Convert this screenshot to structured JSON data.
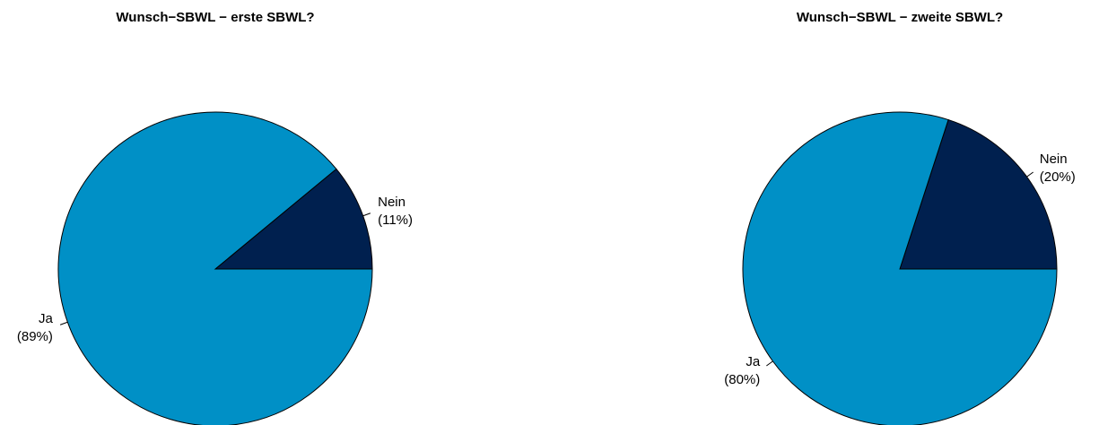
{
  "chart_data": [
    {
      "type": "pie",
      "title": "Wunsch−SBWL − erste SBWL?",
      "slices": [
        {
          "label": "Nein",
          "percent_label": "(11%)",
          "value": 11,
          "color": "#00204f"
        },
        {
          "label": "Ja",
          "percent_label": "(89%)",
          "value": 89,
          "color": "#0090c6"
        }
      ],
      "start_angle_deg": 0,
      "direction": "counterclockwise",
      "legend": "none"
    },
    {
      "type": "pie",
      "title": "Wunsch−SBWL − zweite SBWL?",
      "slices": [
        {
          "label": "Nein",
          "percent_label": "(20%)",
          "value": 20,
          "color": "#00204f"
        },
        {
          "label": "Ja",
          "percent_label": "(80%)",
          "value": 80,
          "color": "#0090c6"
        }
      ],
      "start_angle_deg": 0,
      "direction": "counterclockwise",
      "legend": "none"
    }
  ]
}
